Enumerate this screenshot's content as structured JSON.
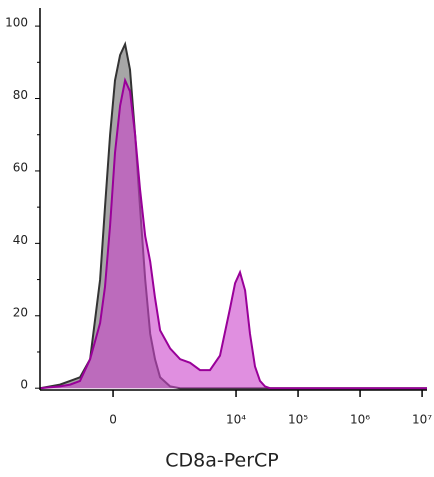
{
  "chart_data": {
    "type": "area",
    "x_label": "CD8a-PerCP",
    "x": [
      -1560,
      -730,
      -491,
      -324,
      -200,
      -104,
      -63,
      -23,
      15,
      55,
      96,
      140,
      190,
      245,
      312,
      387,
      472,
      578,
      853,
      1244,
      1810,
      2620,
      3800,
      5510,
      8000,
      9650,
      11600,
      14000,
      16800,
      20200,
      24300,
      29300,
      35300,
      51200,
      12000000
    ],
    "series": [
      {
        "color": "#888888",
        "line_color": "#333333",
        "values": [
          0,
          1,
          2,
          3,
          8,
          30,
          50,
          70,
          85,
          92,
          95,
          88,
          70,
          50,
          30,
          15,
          8,
          3,
          0.5,
          0,
          0,
          0,
          0,
          0,
          0,
          0,
          0,
          0,
          0,
          0,
          0,
          0,
          0,
          0,
          0
        ]
      },
      {
        "color": "#cc44cc",
        "line_color": "#990099",
        "values": [
          0,
          0.5,
          1,
          2,
          8,
          18,
          28,
          45,
          65,
          78,
          85,
          82,
          70,
          55,
          42,
          35,
          25,
          16,
          11,
          8,
          7,
          5,
          5,
          9,
          22,
          29,
          32,
          27,
          15,
          6,
          2,
          0.5,
          0,
          0,
          0
        ]
      }
    ],
    "xscale": "biexponential",
    "xlim": [
      -1560,
      12000000
    ],
    "xticks": [
      0,
      {
        "value": 10000,
        "label": "10⁴"
      },
      {
        "value": 100000,
        "label": "10⁵"
      },
      {
        "value": 1000000,
        "label": "10⁶"
      },
      {
        "value": 10000000,
        "label": "10⁷"
      }
    ],
    "ylim": [
      -0.5,
      105
    ],
    "yticks": [
      0,
      20,
      40,
      60,
      80,
      100
    ]
  }
}
